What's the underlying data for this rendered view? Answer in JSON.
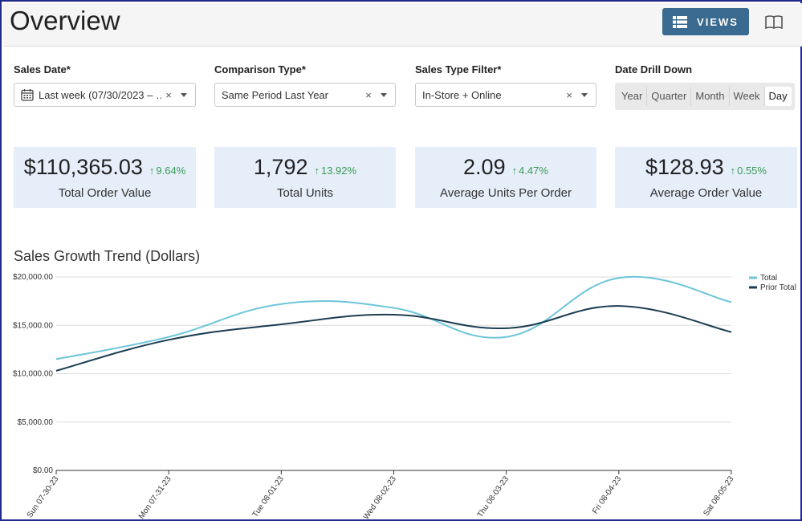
{
  "header": {
    "title": "Overview",
    "views_label": "VIEWS",
    "views_icon": "list-icon",
    "help_icon": "book-icon"
  },
  "filters": {
    "sales_date": {
      "label": "Sales Date*",
      "value": "Last week (07/30/2023 – …"
    },
    "comparison_type": {
      "label": "Comparison Type*",
      "value": "Same Period Last Year"
    },
    "sales_type": {
      "label": "Sales Type Filter*",
      "value": "In-Store + Online"
    },
    "date_drill_down": {
      "label": "Date Drill Down",
      "options": [
        "Year",
        "Quarter",
        "Month",
        "Week",
        "Day"
      ],
      "selected": "Day"
    }
  },
  "kpis": [
    {
      "value": "$110,365.03",
      "delta": "9.64%",
      "label": "Total Order Value"
    },
    {
      "value": "1,792",
      "delta": "13.92%",
      "label": "Total Units"
    },
    {
      "value": "2.09",
      "delta": "4.47%",
      "label": "Average Units Per Order"
    },
    {
      "value": "$128.93",
      "delta": "0.55%",
      "label": "Average Order Value"
    }
  ],
  "colors": {
    "accent": "#3a6a8f",
    "kpi_bg": "#e6eefa",
    "positive": "#3a9a55",
    "total": "#6cc5d9",
    "prior_total": "#1c3d52"
  },
  "chart_data": {
    "type": "line",
    "title": "Sales Growth Trend (Dollars)",
    "categories": [
      "Sun 07-30-23",
      "Mon 07-31-23",
      "Tue 08-01-23",
      "Wed 08-02-23",
      "Thu 08-03-23",
      "Fri 08-04-23",
      "Sat 08-05-23"
    ],
    "series": [
      {
        "name": "Total",
        "values": [
          11500,
          13800,
          17200,
          16800,
          13800,
          19900,
          17400
        ]
      },
      {
        "name": "Prior Total",
        "values": [
          10300,
          13500,
          15100,
          16100,
          14700,
          17000,
          14300
        ]
      }
    ],
    "yticks": [
      "$0.00",
      "$5,000.00",
      "$10,000.00",
      "$15,000.00",
      "$20,000.00"
    ],
    "ylim": [
      0,
      20000
    ],
    "legend_position": "top-right",
    "grid": true
  }
}
